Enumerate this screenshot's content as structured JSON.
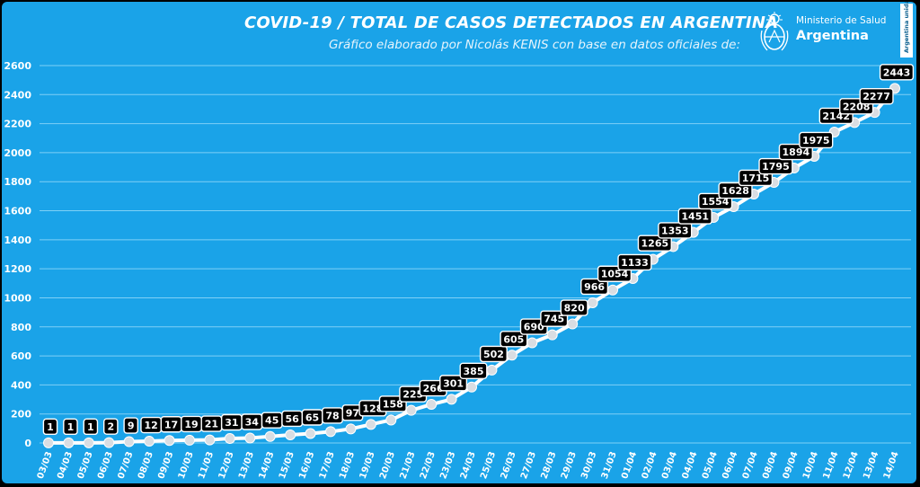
{
  "header": {
    "title": "COVID-19  /  TOTAL DE CASOS DETECTADOS EN ARGENTINA",
    "subtitle": "Gráfico elaborado por Nicolás KENIS con base en datos oficiales de:"
  },
  "logo": {
    "ministry": "Ministerio de Salud",
    "country": "Argentina",
    "badge": "Argentina unida"
  },
  "colors": {
    "background": "#1aa3e8",
    "line": "#ffffff",
    "marker": "#d9dde2",
    "label_bg": "#000000",
    "label_text": "#ffffff",
    "grid": "#7fd0f6",
    "axis_text": "#ffffff"
  },
  "chart_data": {
    "type": "line",
    "title": "COVID-19  /  TOTAL DE CASOS DETECTADOS EN ARGENTINA",
    "xlabel": "",
    "ylabel": "",
    "ylim": [
      0,
      2600
    ],
    "yticks": [
      0,
      200,
      400,
      600,
      800,
      1000,
      1200,
      1400,
      1600,
      1800,
      2000,
      2200,
      2400,
      2600
    ],
    "grid": true,
    "legend": "none",
    "categories": [
      "03/03",
      "04/03",
      "05/03",
      "06/03",
      "07/03",
      "08/03",
      "09/03",
      "10/03",
      "11/03",
      "12/03",
      "13/03",
      "14/03",
      "15/03",
      "16/03",
      "17/03",
      "18/03",
      "19/03",
      "20/03",
      "21/03",
      "22/03",
      "23/03",
      "24/03",
      "25/03",
      "26/03",
      "27/03",
      "28/03",
      "29/03",
      "30/03",
      "31/03",
      "01/04",
      "02/04",
      "03/04",
      "04/04",
      "05/04",
      "06/04",
      "07/04",
      "08/04",
      "09/04",
      "10/04",
      "11/04",
      "12/04",
      "13/04",
      "14/04"
    ],
    "values": [
      1,
      1,
      1,
      2,
      9,
      12,
      17,
      19,
      21,
      31,
      34,
      45,
      56,
      65,
      78,
      97,
      128,
      158,
      225,
      266,
      301,
      385,
      502,
      605,
      690,
      745,
      820,
      966,
      1054,
      1133,
      1265,
      1353,
      1451,
      1554,
      1628,
      1715,
      1795,
      1894,
      1975,
      2142,
      2208,
      2277,
      2443
    ],
    "data_labels": [
      "1",
      "1",
      "1",
      "2",
      "9",
      "12",
      "17",
      "19",
      "21",
      "31",
      "34",
      "45",
      "56",
      "65",
      "78",
      "97",
      "128",
      "158",
      "225",
      "266",
      "301",
      "385",
      "502",
      "605",
      "690",
      "745",
      "820",
      "966",
      "1054",
      "1133",
      "1265",
      "1353",
      "1451",
      "1554",
      "1628",
      "1715",
      "1795",
      "1894",
      "1975",
      "2142",
      "2208",
      "2277",
      "2443"
    ]
  }
}
